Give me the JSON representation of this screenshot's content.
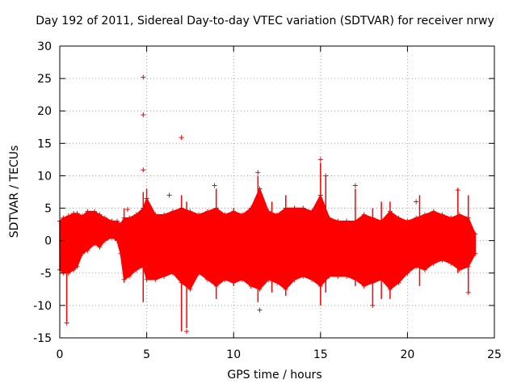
{
  "chart_data": {
    "type": "scatter",
    "title": "Day 192 of 2011, Sidereal Day-to-day VTEC variation (SDTVAR) for receiver nrwy",
    "xlabel": "GPS time / hours",
    "ylabel": "SDTVAR / TECUs",
    "xlim": [
      0,
      25
    ],
    "ylim": [
      -15,
      30
    ],
    "xticks": [
      0,
      5,
      10,
      15,
      20,
      25
    ],
    "yticks": [
      -15,
      -10,
      -5,
      0,
      5,
      10,
      15,
      20,
      25,
      30
    ],
    "grid": true,
    "marker": "+",
    "color": "#ff0000",
    "band": [
      [
        0.0,
        -4.5,
        3.0
      ],
      [
        0.2,
        -5.0,
        3.5
      ],
      [
        0.5,
        -5.0,
        3.8
      ],
      [
        0.8,
        -4.5,
        4.2
      ],
      [
        1.0,
        -4.0,
        4.2
      ],
      [
        1.3,
        -2.0,
        3.8
      ],
      [
        1.6,
        -1.5,
        4.5
      ],
      [
        2.0,
        -0.5,
        4.5
      ],
      [
        2.3,
        -1.0,
        4.0
      ],
      [
        2.6,
        0.0,
        3.5
      ],
      [
        3.0,
        0.5,
        3.0
      ],
      [
        3.3,
        0.0,
        3.0
      ],
      [
        3.5,
        -2.0,
        2.5
      ],
      [
        3.7,
        -6.0,
        3.5
      ],
      [
        4.0,
        -5.5,
        3.5
      ],
      [
        4.4,
        -4.5,
        4.0
      ],
      [
        4.8,
        -4.0,
        5.0
      ],
      [
        5.0,
        -6.0,
        6.5
      ],
      [
        5.5,
        -6.0,
        4.0
      ],
      [
        6.0,
        -5.5,
        4.0
      ],
      [
        6.5,
        -5.0,
        4.5
      ],
      [
        7.0,
        -6.5,
        5.0
      ],
      [
        7.5,
        -7.5,
        4.5
      ],
      [
        8.0,
        -5.0,
        4.0
      ],
      [
        8.5,
        -6.0,
        4.5
      ],
      [
        9.0,
        -7.0,
        5.0
      ],
      [
        9.5,
        -6.0,
        4.0
      ],
      [
        10.0,
        -6.5,
        4.5
      ],
      [
        10.5,
        -6.0,
        4.0
      ],
      [
        11.0,
        -7.0,
        5.0
      ],
      [
        11.5,
        -7.5,
        8.0
      ],
      [
        12.0,
        -6.0,
        4.5
      ],
      [
        12.5,
        -6.5,
        4.0
      ],
      [
        13.0,
        -7.5,
        5.0
      ],
      [
        13.5,
        -6.0,
        5.0
      ],
      [
        14.0,
        -5.5,
        5.0
      ],
      [
        14.5,
        -6.0,
        4.5
      ],
      [
        15.0,
        -7.0,
        7.0
      ],
      [
        15.5,
        -5.5,
        3.5
      ],
      [
        16.0,
        -5.5,
        3.0
      ],
      [
        16.5,
        -5.5,
        3.0
      ],
      [
        17.0,
        -6.0,
        3.0
      ],
      [
        17.5,
        -7.0,
        4.0
      ],
      [
        18.0,
        -6.5,
        3.5
      ],
      [
        18.5,
        -6.0,
        3.0
      ],
      [
        19.0,
        -7.5,
        4.5
      ],
      [
        19.5,
        -6.5,
        3.5
      ],
      [
        20.0,
        -5.0,
        3.0
      ],
      [
        20.5,
        -4.0,
        3.5
      ],
      [
        21.0,
        -4.5,
        4.0
      ],
      [
        21.5,
        -3.5,
        4.5
      ],
      [
        22.0,
        -3.0,
        4.0
      ],
      [
        22.5,
        -3.5,
        3.5
      ],
      [
        23.0,
        -4.5,
        4.0
      ],
      [
        23.5,
        -4.0,
        3.5
      ],
      [
        23.9,
        -2.0,
        1.0
      ]
    ],
    "spikes": [
      [
        0.4,
        -12.5,
        3.0
      ],
      [
        3.7,
        -6.5,
        5.0
      ],
      [
        4.8,
        -9.5,
        7.5
      ],
      [
        5.0,
        -6.0,
        8.0
      ],
      [
        7.0,
        -14.0,
        7.0
      ],
      [
        7.3,
        -13.5,
        6.0
      ],
      [
        9.0,
        -9.0,
        8.0
      ],
      [
        10.0,
        -7.0,
        5.0
      ],
      [
        11.4,
        -9.5,
        10.0
      ],
      [
        12.2,
        -8.0,
        6.0
      ],
      [
        13.0,
        -8.5,
        7.0
      ],
      [
        15.0,
        -10.0,
        12.0
      ],
      [
        15.3,
        -8.0,
        10.0
      ],
      [
        17.0,
        -7.0,
        8.0
      ],
      [
        18.0,
        -10.0,
        5.0
      ],
      [
        18.5,
        -9.0,
        6.0
      ],
      [
        19.0,
        -9.0,
        6.0
      ],
      [
        20.7,
        -7.0,
        7.0
      ],
      [
        22.9,
        -5.0,
        8.0
      ],
      [
        23.5,
        -8.0,
        7.0
      ]
    ],
    "outliers": [
      [
        4.8,
        25.2
      ],
      [
        4.8,
        19.4
      ],
      [
        4.8,
        10.9
      ],
      [
        7.0,
        15.9
      ],
      [
        8.9,
        8.5
      ],
      [
        11.4,
        10.5
      ],
      [
        15.0,
        12.5
      ],
      [
        15.3,
        10.0
      ],
      [
        17.0,
        8.5
      ],
      [
        6.3,
        7.0
      ],
      [
        3.9,
        4.8
      ],
      [
        0.4,
        -12.7
      ],
      [
        7.3,
        -14.0
      ],
      [
        11.5,
        -10.7
      ],
      [
        23.5,
        -8.0
      ],
      [
        18.0,
        -10.0
      ],
      [
        20.5,
        6.0
      ],
      [
        22.9,
        7.8
      ]
    ]
  }
}
